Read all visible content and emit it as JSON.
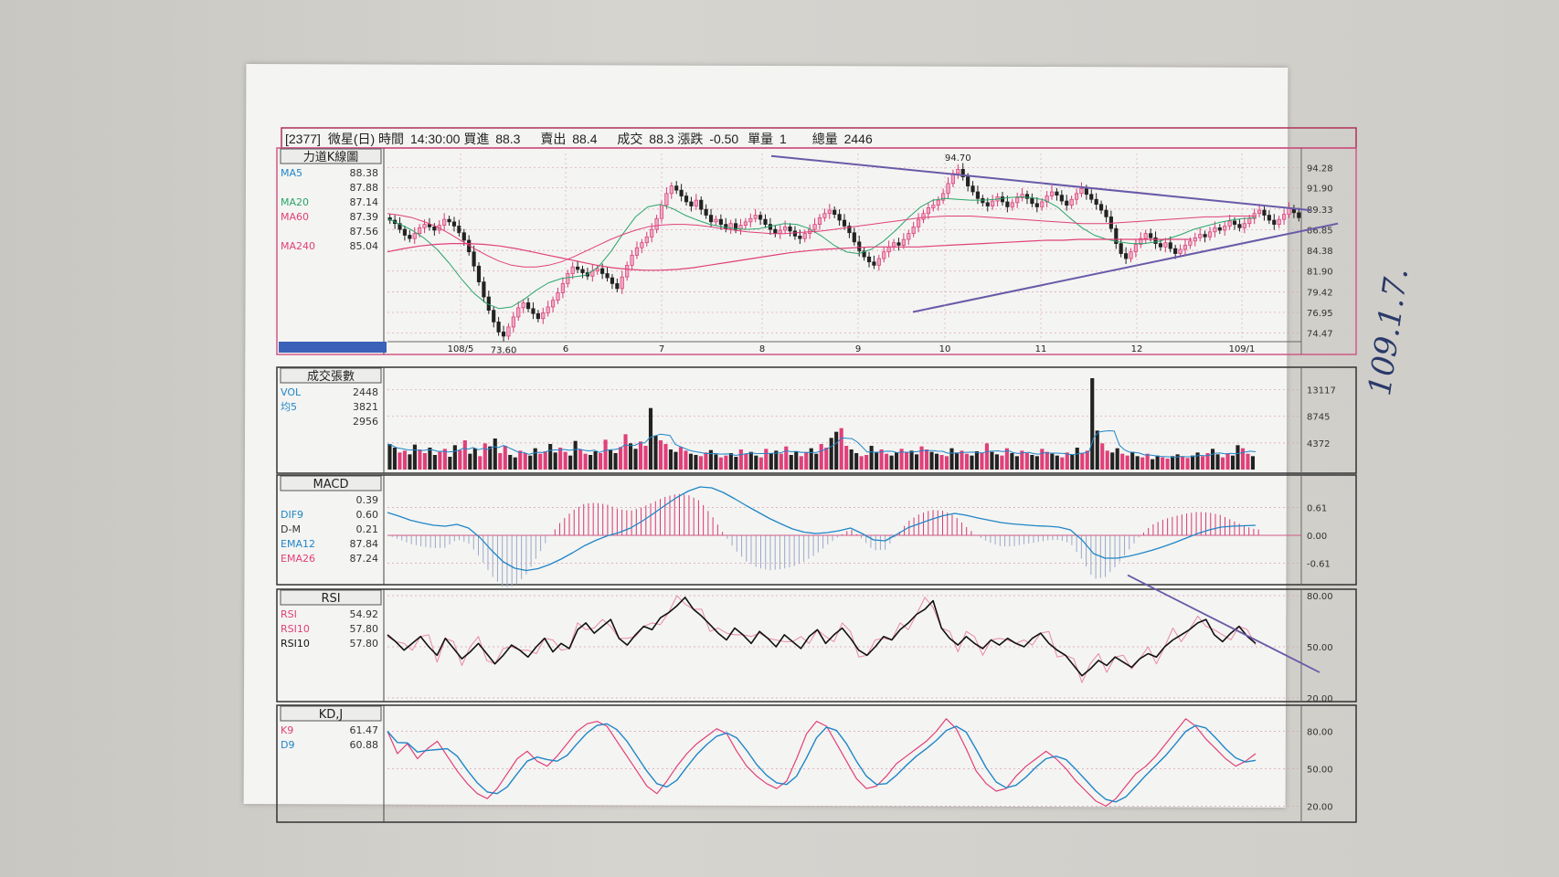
{
  "header": {
    "code": "[2377]",
    "name": "微星(日)",
    "time_label": "時間",
    "time": "14:30:00",
    "bid_label": "買進",
    "bid": "88.3",
    "ask_label": "賣出",
    "ask": "88.4",
    "deal_label": "成交",
    "deal": "88.3",
    "change_label": "漲跌",
    "change": "-0.50",
    "lot_label": "單量",
    "lot": "1",
    "total_label": "總量",
    "total": "2446"
  },
  "handwritten_note": "109.1.7.",
  "chart_data": [
    {
      "type": "candlestick",
      "title": "力道K線圖",
      "legend": [
        {
          "name": "MA5",
          "value": "88.38",
          "color": "#1f86c8"
        },
        {
          "name": "",
          "value": "87.88",
          "color": "#555555"
        },
        {
          "name": "MA20",
          "value": "87.14",
          "color": "#2aa56a"
        },
        {
          "name": "MA60",
          "value": "87.39",
          "color": "#e0407a"
        },
        {
          "name": "",
          "value": "87.56",
          "color": "#555555"
        },
        {
          "name": "MA240",
          "value": "85.04",
          "color": "#e0407a"
        }
      ],
      "x_ticks": [
        "108/5",
        "6",
        "7",
        "8",
        "9",
        "10",
        "11",
        "12",
        "109/1"
      ],
      "y_ticks": [
        "94.28",
        "91.90",
        "89.33",
        "86.85",
        "84.38",
        "81.90",
        "79.42",
        "76.95",
        "74.47"
      ],
      "ylim": [
        73.0,
        96.0
      ],
      "annotations": [
        {
          "label": "94.70",
          "value": 94.7
        },
        {
          "label": "73.60",
          "value": 73.6
        }
      ],
      "close": [
        88.0,
        87.6,
        86.9,
        86.2,
        85.8,
        86.4,
        87.1,
        87.5,
        87.2,
        86.8,
        87.4,
        88.1,
        87.8,
        87.3,
        86.5,
        85.6,
        84.2,
        82.5,
        80.6,
        78.8,
        77.2,
        75.8,
        74.6,
        74.1,
        75.2,
        76.4,
        77.5,
        78.1,
        77.4,
        76.8,
        76.2,
        76.9,
        77.6,
        78.4,
        79.3,
        80.4,
        81.6,
        82.4,
        82.1,
        81.7,
        81.3,
        81.9,
        82.2,
        81.6,
        81.1,
        80.4,
        79.8,
        81.2,
        82.6,
        83.8,
        84.7,
        85.3,
        86.0,
        86.9,
        88.2,
        89.8,
        91.2,
        92.1,
        91.6,
        90.9,
        90.2,
        89.7,
        90.4,
        89.3,
        88.6,
        87.8,
        88.1,
        87.5,
        87.0,
        87.6,
        86.9,
        87.4,
        87.8,
        88.2,
        88.6,
        88.1,
        87.5,
        86.9,
        86.4,
        86.8,
        87.2,
        86.7,
        86.1,
        85.8,
        86.4,
        86.9,
        87.5,
        88.3,
        88.8,
        89.2,
        88.7,
        88.0,
        87.3,
        86.5,
        85.4,
        84.3,
        83.6,
        83.0,
        82.6,
        83.4,
        84.2,
        84.8,
        85.3,
        85.0,
        85.7,
        86.4,
        87.2,
        88.1,
        88.8,
        89.5,
        89.8,
        90.4,
        91.2,
        92.4,
        93.6,
        94.1,
        93.2,
        92.1,
        91.4,
        90.6,
        90.1,
        89.7,
        90.3,
        90.8,
        90.2,
        89.6,
        90.1,
        90.7,
        91.1,
        90.6,
        90.0,
        89.6,
        90.2,
        90.9,
        91.4,
        91.0,
        90.3,
        89.8,
        90.5,
        91.2,
        91.8,
        91.1,
        90.5,
        89.9,
        89.2,
        88.4,
        87.0,
        85.2,
        84.0,
        83.4,
        84.2,
        85.1,
        85.8,
        86.4,
        85.9,
        85.2,
        84.8,
        85.3,
        84.6,
        84.0,
        84.5,
        85.0,
        85.5,
        85.9,
        86.3,
        86.0,
        86.6,
        87.1,
        86.8,
        87.3,
        87.9,
        87.5,
        87.1,
        87.6,
        88.2,
        88.8,
        89.2,
        88.6,
        88.0,
        87.5,
        88.1,
        88.7,
        89.4,
        88.9,
        88.3
      ],
      "ma": [
        {
          "name": "MA20",
          "color": "#2aa56a",
          "values": [
            88.2,
            87.5,
            86.8,
            85.8,
            84.5,
            82.8,
            80.9,
            79.2,
            78.0,
            77.4,
            77.6,
            78.5,
            79.6,
            80.5,
            81.0,
            81.2,
            81.4,
            82.4,
            84.2,
            86.4,
            88.4,
            89.6,
            89.9,
            89.4,
            88.6,
            88.0,
            87.5,
            87.2,
            87.0,
            86.9,
            87.0,
            87.3,
            87.6,
            87.5,
            87.0,
            86.1,
            85.0,
            84.2,
            84.0,
            84.5,
            85.5,
            86.8,
            88.3,
            89.6,
            90.4,
            90.6,
            90.5,
            90.4,
            90.4,
            90.5,
            90.7,
            90.8,
            90.7,
            90.4,
            89.6,
            88.3,
            87.1,
            86.2,
            85.7,
            85.4,
            85.2,
            85.2,
            85.4,
            85.8,
            86.3,
            86.9,
            87.3,
            87.7,
            88.0,
            88.2,
            88.3
          ]
        },
        {
          "name": "MA60",
          "color": "#e0407a",
          "values": [
            88.8,
            88.6,
            88.3,
            87.8,
            87.2,
            86.4,
            85.5,
            84.6,
            83.8,
            83.1,
            82.6,
            82.4,
            82.4,
            82.6,
            83.0,
            83.6,
            84.3,
            85.0,
            85.7,
            86.3,
            86.8,
            87.2,
            87.4,
            87.5,
            87.5,
            87.4,
            87.2,
            87.0,
            86.8,
            86.6,
            86.5,
            86.4,
            86.4,
            86.5,
            86.6,
            86.7,
            86.9,
            87.1,
            87.3,
            87.5,
            87.7,
            87.9,
            88.1,
            88.3,
            88.4,
            88.5,
            88.5,
            88.5,
            88.4,
            88.3,
            88.2,
            88.1,
            88.0,
            87.9,
            87.8,
            87.7,
            87.6,
            87.6,
            87.6,
            87.7,
            87.8,
            87.9,
            88.0,
            88.1,
            88.2,
            88.3,
            88.4,
            88.4,
            88.5,
            88.5,
            88.5
          ]
        },
        {
          "name": "MA240",
          "color": "#e0407a",
          "values": [
            84.2,
            84.6,
            84.9,
            85.1,
            85.2,
            85.2,
            85.1,
            84.9,
            84.6,
            84.2,
            83.8,
            83.4,
            83.0,
            82.6,
            82.3,
            82.1,
            82.0,
            82.0,
            82.1,
            82.3,
            82.6,
            82.9,
            83.2,
            83.5,
            83.8,
            84.1,
            84.3,
            84.5,
            84.6,
            84.7,
            84.8,
            84.8,
            84.8,
            84.8,
            84.9,
            85.0,
            85.1,
            85.2,
            85.3,
            85.4,
            85.5,
            85.6,
            85.6,
            85.7,
            85.7,
            85.7,
            85.7,
            85.7,
            85.7,
            85.7,
            85.7
          ]
        }
      ]
    },
    {
      "type": "bar",
      "title": "成交張數",
      "legend": [
        {
          "name": "VOL",
          "value": "2448",
          "color": "#1f86c8"
        },
        {
          "name": "均5",
          "value": "3821",
          "color": "#1f86c8"
        },
        {
          "name": "",
          "value": "2956",
          "color": "#333333"
        }
      ],
      "y_ticks": [
        "13117",
        "8745",
        "4372"
      ],
      "ylim": [
        0,
        15600
      ],
      "values": [
        4200,
        3600,
        2800,
        3100,
        2500,
        4100,
        3300,
        2700,
        3600,
        2400,
        2900,
        3400,
        2100,
        4000,
        3200,
        4800,
        2600,
        3500,
        2200,
        4300,
        3800,
        5100,
        2700,
        3900,
        2400,
        2000,
        3100,
        2700,
        2300,
        3500,
        2600,
        3000,
        4200,
        2800,
        3600,
        2900,
        2300,
        4700,
        3300,
        2600,
        2400,
        3000,
        2700,
        4900,
        3200,
        2700,
        3700,
        5800,
        4300,
        3400,
        4600,
        3900,
        10100,
        5600,
        4800,
        4200,
        3300,
        2900,
        3700,
        3100,
        2600,
        2400,
        2200,
        2800,
        3200,
        2500,
        2000,
        2300,
        2700,
        2100,
        3300,
        2600,
        2900,
        2300,
        2000,
        3400,
        2700,
        3100,
        2600,
        3800,
        2400,
        3000,
        2200,
        2800,
        3500,
        2600,
        4200,
        3600,
        5200,
        6200,
        6800,
        3900,
        3300,
        2700,
        2200,
        2400,
        3900,
        2900,
        3300,
        2600,
        2300,
        2800,
        3400,
        2900,
        3100,
        2500,
        3800,
        3300,
        2900,
        2600,
        2400,
        2200,
        3500,
        2800,
        3100,
        2600,
        2300,
        3000,
        2700,
        4300,
        2900,
        2500,
        2300,
        3500,
        2700,
        2200,
        3100,
        2700,
        2400,
        2200,
        3400,
        2900,
        2600,
        2300,
        2000,
        2800,
        2500,
        3600,
        2700,
        3100,
        15000,
        6400,
        4300,
        3100,
        2800,
        3500,
        2600,
        2300,
        2900,
        2200,
        2000,
        2600,
        1700,
        2300,
        2000,
        1800,
        2200,
        2500,
        2100,
        1900,
        2300,
        2800,
        2200,
        2700,
        3400,
        2500,
        2000,
        2700,
        2300,
        4000,
        3500,
        2600,
        2200
      ]
    },
    {
      "type": "line",
      "title": "MACD",
      "legend": [
        {
          "name": "",
          "value": "0.39",
          "color": "#333333"
        },
        {
          "name": "DIF9",
          "value": "0.60",
          "color": "#1f86c8"
        },
        {
          "name": "D-M",
          "value": "0.21",
          "color": "#333333"
        },
        {
          "name": "EMA12",
          "value": "87.84",
          "color": "#1f86c8"
        },
        {
          "name": "EMA26",
          "value": "87.24",
          "color": "#e0407a"
        }
      ],
      "y_ticks": [
        "0.61",
        "0.00",
        "-0.61"
      ],
      "ylim": [
        -1.0,
        1.2
      ],
      "dif": [
        0.5,
        0.42,
        0.33,
        0.27,
        0.22,
        0.2,
        0.24,
        0.16,
        -0.05,
        -0.33,
        -0.58,
        -0.72,
        -0.77,
        -0.73,
        -0.64,
        -0.52,
        -0.38,
        -0.23,
        -0.11,
        -0.01,
        0.06,
        0.16,
        0.31,
        0.48,
        0.66,
        0.83,
        0.97,
        1.06,
        1.04,
        0.94,
        0.8,
        0.65,
        0.51,
        0.37,
        0.25,
        0.14,
        0.07,
        0.04,
        0.06,
        0.1,
        0.16,
        0.04,
        -0.1,
        -0.12,
        0.02,
        0.17,
        0.26,
        0.35,
        0.43,
        0.48,
        0.44,
        0.38,
        0.33,
        0.28,
        0.25,
        0.23,
        0.21,
        0.2,
        0.18,
        0.12,
        -0.1,
        -0.4,
        -0.5,
        -0.5,
        -0.46,
        -0.4,
        -0.33,
        -0.25,
        -0.16,
        -0.06,
        0.04,
        0.12,
        0.18,
        0.2,
        0.21,
        0.22
      ]
    },
    {
      "type": "line",
      "title": "RSI",
      "legend": [
        {
          "name": "RSI",
          "value": "54.92",
          "color": "#e0407a"
        },
        {
          "name": "RSI10",
          "value": "57.80",
          "color": "#e0407a"
        },
        {
          "name": "RSI10",
          "value": "57.80",
          "color": "#111111"
        }
      ],
      "y_ticks": [
        "80.00",
        "50.00",
        "20.00"
      ],
      "ylim": [
        20,
        80
      ],
      "rsi": [
        57,
        53,
        48,
        52,
        56,
        50,
        45,
        55,
        49,
        43,
        47,
        52,
        46,
        40,
        45,
        51,
        48,
        44,
        50,
        55,
        47,
        52,
        49,
        60,
        64,
        58,
        62,
        66,
        55,
        51,
        57,
        62,
        60,
        67,
        70,
        74,
        79,
        72,
        68,
        63,
        58,
        54,
        61,
        57,
        52,
        59,
        55,
        50,
        57,
        53,
        49,
        56,
        60,
        52,
        57,
        61,
        55,
        48,
        45,
        50,
        56,
        54,
        60,
        64,
        69,
        72,
        77,
        61,
        55,
        51,
        56,
        52,
        49,
        54,
        51,
        55,
        52,
        50,
        55,
        58,
        52,
        48,
        45,
        39,
        33,
        37,
        42,
        39,
        44,
        41,
        38,
        43,
        46,
        44,
        50,
        54,
        57,
        60,
        64,
        66,
        57,
        53,
        58,
        62,
        56,
        52
      ]
    },
    {
      "type": "line",
      "title": "KD,J",
      "legend": [
        {
          "name": "K9",
          "value": "61.47",
          "color": "#e0407a"
        },
        {
          "name": "D9",
          "value": "60.88",
          "color": "#1f86c8"
        }
      ],
      "y_ticks": [
        "80.00",
        "50.00",
        "20.00"
      ],
      "ylim": [
        10,
        95
      ],
      "k": [
        80,
        62,
        70,
        58,
        66,
        72,
        60,
        48,
        38,
        30,
        26,
        34,
        46,
        58,
        64,
        56,
        52,
        60,
        70,
        80,
        86,
        88,
        84,
        72,
        60,
        48,
        36,
        30,
        40,
        52,
        62,
        70,
        76,
        82,
        78,
        64,
        52,
        44,
        38,
        34,
        40,
        58,
        78,
        88,
        84,
        70,
        56,
        42,
        34,
        36,
        44,
        54,
        60,
        66,
        72,
        80,
        90,
        82,
        66,
        48,
        38,
        32,
        34,
        44,
        52,
        58,
        64,
        58,
        50,
        40,
        32,
        24,
        20,
        26,
        36,
        46,
        52,
        60,
        70,
        80,
        90,
        84,
        74,
        66,
        58,
        52,
        56,
        62
      ]
    }
  ]
}
